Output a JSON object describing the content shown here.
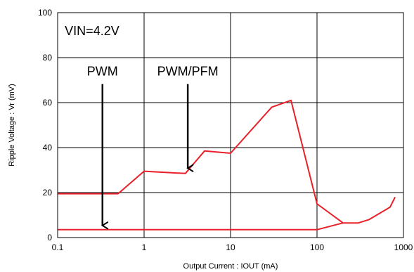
{
  "chart_data": {
    "type": "line",
    "title": "",
    "xlabel": "Output Current : IOUT (mA)",
    "ylabel": "Ripple Voltage : Vr (mV)",
    "xscale": "log",
    "xlim": [
      0.1,
      1000
    ],
    "ylim": [
      0,
      100
    ],
    "x_ticks": [
      "0.1",
      "1",
      "10",
      "100",
      "1000"
    ],
    "y_ticks": [
      "0",
      "20",
      "40",
      "60",
      "80",
      "100"
    ],
    "grid": true,
    "line_color": "#e8202a",
    "series": [
      {
        "x": [
          0.1,
          0.5,
          1,
          3,
          5,
          10,
          30,
          50,
          100,
          200,
          300,
          400,
          600,
          700,
          800
        ],
        "y": [
          19.5,
          19.5,
          29.5,
          28.5,
          38.5,
          37.5,
          58,
          61,
          15,
          6.5,
          6.5,
          8,
          12,
          13.5,
          18
        ]
      },
      {
        "x": [
          0.1,
          100,
          200
        ],
        "y": [
          3.5,
          3.5,
          6.5
        ]
      }
    ],
    "annotations": [
      {
        "text": "VIN=4.2V",
        "x": 0.25,
        "y": 90
      },
      {
        "text": "PWM",
        "x": 0.33,
        "y": 72,
        "arrow_to": [
          0.33,
          3.5
        ]
      },
      {
        "text": "PWM/PFM",
        "x": 3.2,
        "y": 72,
        "arrow_to": [
          3.2,
          29
        ]
      }
    ]
  }
}
